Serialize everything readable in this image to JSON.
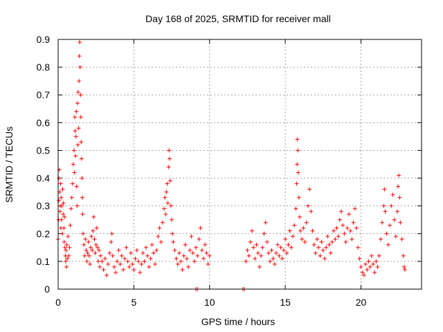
{
  "chart_data": {
    "type": "scatter",
    "title": "Day 168 of 2025, SRMTID for receiver mall",
    "xlabel": "GPS time / hours",
    "ylabel": "SRMTID / TECUs",
    "xlim": [
      0,
      24
    ],
    "ylim": [
      0,
      0.9
    ],
    "xticks": [
      0,
      5,
      10,
      15,
      20
    ],
    "yticks": [
      0,
      0.1,
      0.2,
      0.3,
      0.4,
      0.5,
      0.6,
      0.7,
      0.8,
      0.9
    ],
    "grid": true,
    "marker": "+",
    "series_color": "#ff0000",
    "series": [
      {
        "name": "SRMTID",
        "points": [
          [
            0.0,
            0.18
          ],
          [
            0.03,
            0.25
          ],
          [
            0.05,
            0.32
          ],
          [
            0.06,
            0.4
          ],
          [
            0.08,
            0.43
          ],
          [
            0.1,
            0.35
          ],
          [
            0.12,
            0.28
          ],
          [
            0.14,
            0.3
          ],
          [
            0.16,
            0.38
          ],
          [
            0.18,
            0.22
          ],
          [
            0.2,
            0.33
          ],
          [
            0.22,
            0.25
          ],
          [
            0.25,
            0.3
          ],
          [
            0.28,
            0.2
          ],
          [
            0.3,
            0.36
          ],
          [
            0.33,
            0.27
          ],
          [
            0.35,
            0.31
          ],
          [
            0.38,
            0.22
          ],
          [
            0.4,
            0.17
          ],
          [
            0.42,
            0.26
          ],
          [
            0.45,
            0.15
          ],
          [
            0.48,
            0.12
          ],
          [
            0.5,
            0.1
          ],
          [
            0.52,
            0.14
          ],
          [
            0.55,
            0.08
          ],
          [
            0.58,
            0.16
          ],
          [
            0.6,
            0.11
          ],
          [
            0.65,
            0.19
          ],
          [
            0.7,
            0.12
          ],
          [
            0.75,
            0.15
          ],
          [
            0.8,
            0.23
          ],
          [
            0.85,
            0.29
          ],
          [
            0.9,
            0.33
          ],
          [
            0.95,
            0.38
          ],
          [
            1.0,
            0.45
          ],
          [
            1.05,
            0.5
          ],
          [
            1.08,
            0.42
          ],
          [
            1.1,
            0.62
          ],
          [
            1.12,
            0.57
          ],
          [
            1.15,
            0.48
          ],
          [
            1.18,
            0.55
          ],
          [
            1.2,
            0.64
          ],
          [
            1.22,
            0.37
          ],
          [
            1.25,
            0.3
          ],
          [
            1.28,
            0.67
          ],
          [
            1.3,
            0.52
          ],
          [
            1.32,
            0.71
          ],
          [
            1.35,
            0.58
          ],
          [
            1.38,
            0.75
          ],
          [
            1.4,
            0.84
          ],
          [
            1.42,
            0.89
          ],
          [
            1.45,
            0.8
          ],
          [
            1.48,
            0.7
          ],
          [
            1.5,
            0.62
          ],
          [
            1.52,
            0.53
          ],
          [
            1.55,
            0.47
          ],
          [
            1.58,
            0.4
          ],
          [
            1.6,
            0.33
          ],
          [
            1.62,
            0.27
          ],
          [
            1.65,
            0.2
          ],
          [
            1.7,
            0.16
          ],
          [
            1.75,
            0.12
          ],
          [
            1.8,
            0.18
          ],
          [
            1.85,
            0.14
          ],
          [
            1.9,
            0.1
          ],
          [
            1.95,
            0.13
          ],
          [
            2.0,
            0.17
          ],
          [
            2.05,
            0.12
          ],
          [
            2.1,
            0.09
          ],
          [
            2.15,
            0.15
          ],
          [
            2.2,
            0.19
          ],
          [
            2.25,
            0.14
          ],
          [
            2.3,
            0.21
          ],
          [
            2.35,
            0.26
          ],
          [
            2.4,
            0.18
          ],
          [
            2.45,
            0.13
          ],
          [
            2.5,
            0.16
          ],
          [
            2.55,
            0.22
          ],
          [
            2.6,
            0.15
          ],
          [
            2.65,
            0.1
          ],
          [
            2.7,
            0.14
          ],
          [
            2.75,
            0.08
          ],
          [
            2.8,
            0.12
          ],
          [
            2.9,
            0.1
          ],
          [
            3.0,
            0.07
          ],
          [
            3.1,
            0.11
          ],
          [
            3.2,
            0.05
          ],
          [
            3.3,
            0.09
          ],
          [
            3.4,
            0.13
          ],
          [
            3.5,
            0.17
          ],
          [
            3.55,
            0.2
          ],
          [
            3.6,
            0.12
          ],
          [
            3.7,
            0.08
          ],
          [
            3.8,
            0.06
          ],
          [
            3.9,
            0.1
          ],
          [
            4.0,
            0.14
          ],
          [
            4.1,
            0.09
          ],
          [
            4.2,
            0.12
          ],
          [
            4.3,
            0.07
          ],
          [
            4.4,
            0.11
          ],
          [
            4.5,
            0.15
          ],
          [
            4.6,
            0.1
          ],
          [
            4.7,
            0.08
          ],
          [
            4.8,
            0.13
          ],
          [
            4.9,
            0.09
          ],
          [
            5.0,
            0.07
          ],
          [
            5.1,
            0.11
          ],
          [
            5.2,
            0.14
          ],
          [
            5.3,
            0.1
          ],
          [
            5.4,
            0.06
          ],
          [
            5.5,
            0.09
          ],
          [
            5.6,
            0.13
          ],
          [
            5.7,
            0.1
          ],
          [
            5.8,
            0.15
          ],
          [
            5.9,
            0.12
          ],
          [
            6.0,
            0.08
          ],
          [
            6.1,
            0.11
          ],
          [
            6.2,
            0.16
          ],
          [
            6.3,
            0.13
          ],
          [
            6.4,
            0.09
          ],
          [
            6.5,
            0.14
          ],
          [
            6.6,
            0.19
          ],
          [
            6.7,
            0.22
          ],
          [
            6.8,
            0.17
          ],
          [
            6.9,
            0.24
          ],
          [
            7.0,
            0.29
          ],
          [
            7.05,
            0.33
          ],
          [
            7.1,
            0.27
          ],
          [
            7.15,
            0.35
          ],
          [
            7.2,
            0.38
          ],
          [
            7.25,
            0.31
          ],
          [
            7.3,
            0.44
          ],
          [
            7.33,
            0.5
          ],
          [
            7.36,
            0.47
          ],
          [
            7.4,
            0.39
          ],
          [
            7.45,
            0.3
          ],
          [
            7.5,
            0.25
          ],
          [
            7.55,
            0.2
          ],
          [
            7.6,
            0.17
          ],
          [
            7.7,
            0.14
          ],
          [
            7.8,
            0.11
          ],
          [
            7.9,
            0.09
          ],
          [
            8.0,
            0.13
          ],
          [
            8.1,
            0.1
          ],
          [
            8.2,
            0.07
          ],
          [
            8.3,
            0.12
          ],
          [
            8.4,
            0.16
          ],
          [
            8.5,
            0.11
          ],
          [
            8.6,
            0.08
          ],
          [
            8.7,
            0.14
          ],
          [
            8.8,
            0.19
          ],
          [
            8.9,
            0.13
          ],
          [
            9.0,
            0.1
          ],
          [
            9.1,
            0.15
          ],
          [
            9.2,
            0.12
          ],
          [
            9.3,
            0.18
          ],
          [
            9.4,
            0.22
          ],
          [
            9.5,
            0.14
          ],
          [
            9.6,
            0.11
          ],
          [
            9.7,
            0.16
          ],
          [
            9.8,
            0.13
          ],
          [
            9.9,
            0.09
          ],
          [
            10.0,
            0.12
          ],
          [
            9.1,
            0.0
          ],
          [
            9.2,
            0.0
          ],
          [
            12.2,
            0.0
          ],
          [
            12.3,
            0.0
          ],
          [
            12.4,
            0.1
          ],
          [
            12.5,
            0.14
          ],
          [
            12.6,
            0.12
          ],
          [
            12.7,
            0.17
          ],
          [
            12.8,
            0.21
          ],
          [
            12.9,
            0.15
          ],
          [
            13.0,
            0.11
          ],
          [
            13.1,
            0.16
          ],
          [
            13.2,
            0.13
          ],
          [
            13.3,
            0.08
          ],
          [
            13.4,
            0.12
          ],
          [
            13.5,
            0.15
          ],
          [
            13.6,
            0.2
          ],
          [
            13.7,
            0.24
          ],
          [
            13.8,
            0.17
          ],
          [
            13.9,
            0.13
          ],
          [
            14.0,
            0.1
          ],
          [
            14.1,
            0.14
          ],
          [
            14.2,
            0.11
          ],
          [
            14.3,
            0.09
          ],
          [
            14.4,
            0.13
          ],
          [
            14.5,
            0.16
          ],
          [
            14.6,
            0.12
          ],
          [
            14.7,
            0.15
          ],
          [
            14.8,
            0.11
          ],
          [
            14.9,
            0.14
          ],
          [
            15.0,
            0.18
          ],
          [
            15.1,
            0.13
          ],
          [
            15.2,
            0.16
          ],
          [
            15.3,
            0.21
          ],
          [
            15.4,
            0.15
          ],
          [
            15.5,
            0.19
          ],
          [
            15.6,
            0.23
          ],
          [
            15.7,
            0.29
          ],
          [
            15.75,
            0.38
          ],
          [
            15.78,
            0.45
          ],
          [
            15.8,
            0.54
          ],
          [
            15.83,
            0.5
          ],
          [
            15.86,
            0.42
          ],
          [
            15.9,
            0.33
          ],
          [
            15.95,
            0.26
          ],
          [
            16.0,
            0.21
          ],
          [
            16.1,
            0.18
          ],
          [
            16.2,
            0.22
          ],
          [
            16.3,
            0.17
          ],
          [
            16.4,
            0.24
          ],
          [
            16.5,
            0.3
          ],
          [
            16.6,
            0.36
          ],
          [
            16.7,
            0.28
          ],
          [
            16.8,
            0.21
          ],
          [
            16.9,
            0.16
          ],
          [
            17.0,
            0.13
          ],
          [
            17.1,
            0.18
          ],
          [
            17.2,
            0.15
          ],
          [
            17.3,
            0.12
          ],
          [
            17.4,
            0.17
          ],
          [
            17.5,
            0.14
          ],
          [
            17.6,
            0.11
          ],
          [
            17.7,
            0.15
          ],
          [
            17.8,
            0.19
          ],
          [
            17.9,
            0.16
          ],
          [
            18.0,
            0.13
          ],
          [
            18.1,
            0.17
          ],
          [
            18.2,
            0.21
          ],
          [
            18.3,
            0.18
          ],
          [
            18.4,
            0.22
          ],
          [
            18.5,
            0.19
          ],
          [
            18.6,
            0.25
          ],
          [
            18.7,
            0.28
          ],
          [
            18.8,
            0.23
          ],
          [
            18.9,
            0.2
          ],
          [
            19.0,
            0.17
          ],
          [
            19.1,
            0.22
          ],
          [
            19.2,
            0.27
          ],
          [
            19.3,
            0.21
          ],
          [
            19.4,
            0.18
          ],
          [
            19.5,
            0.24
          ],
          [
            19.6,
            0.29
          ],
          [
            19.7,
            0.22
          ],
          [
            19.8,
            0.15
          ],
          [
            19.9,
            0.11
          ],
          [
            20.0,
            0.08
          ],
          [
            20.1,
            0.06
          ],
          [
            20.2,
            0.05
          ],
          [
            20.3,
            0.09
          ],
          [
            20.4,
            0.07
          ],
          [
            20.5,
            0.1
          ],
          [
            20.6,
            0.08
          ],
          [
            20.7,
            0.12
          ],
          [
            20.8,
            0.09
          ],
          [
            20.9,
            0.06
          ],
          [
            21.0,
            0.1
          ],
          [
            21.1,
            0.08
          ],
          [
            21.2,
            0.12
          ],
          [
            21.3,
            0.18
          ],
          [
            21.4,
            0.24
          ],
          [
            21.5,
            0.3
          ],
          [
            21.55,
            0.36
          ],
          [
            21.6,
            0.28
          ],
          [
            21.7,
            0.2
          ],
          [
            21.8,
            0.16
          ],
          [
            21.9,
            0.23
          ],
          [
            22.0,
            0.3
          ],
          [
            22.1,
            0.34
          ],
          [
            22.2,
            0.25
          ],
          [
            22.3,
            0.19
          ],
          [
            22.4,
            0.28
          ],
          [
            22.45,
            0.37
          ],
          [
            22.5,
            0.41
          ],
          [
            22.55,
            0.33
          ],
          [
            22.6,
            0.24
          ],
          [
            22.7,
            0.18
          ],
          [
            22.8,
            0.12
          ],
          [
            22.85,
            0.08
          ],
          [
            22.9,
            0.07
          ]
        ]
      }
    ]
  }
}
